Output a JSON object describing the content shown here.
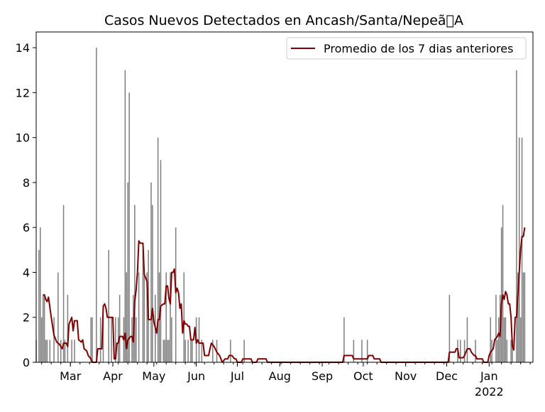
{
  "chart_data": {
    "type": "bar",
    "title": "Casos Nuevos Detectados en Ancash/Santa/Nepeã\u0000A",
    "xlabel": "",
    "ylabel": "",
    "ylim": [
      0,
      14.7
    ],
    "yticks": [
      0,
      2,
      4,
      6,
      8,
      10,
      12,
      14
    ],
    "xlim": [
      "2021-02-04",
      "2022-02-02"
    ],
    "xticks": [
      {
        "date": "2021-03-01",
        "label": "Mar"
      },
      {
        "date": "2021-04-01",
        "label": "Apr"
      },
      {
        "date": "2021-05-01",
        "label": "May"
      },
      {
        "date": "2021-06-01",
        "label": "Jun"
      },
      {
        "date": "2021-07-01",
        "label": "Jul"
      },
      {
        "date": "2021-08-01",
        "label": "Aug"
      },
      {
        "date": "2021-09-01",
        "label": "Sep"
      },
      {
        "date": "2021-10-01",
        "label": "Oct"
      },
      {
        "date": "2021-11-01",
        "label": "Nov"
      },
      {
        "date": "2021-12-01",
        "label": "Dec"
      },
      {
        "date": "2022-01-01",
        "label": "Jan",
        "sublabel": "2022"
      }
    ],
    "bar_color": "#808080",
    "line_color": "#800000",
    "legend": {
      "position": "upper right",
      "entries": [
        "Promedio de los 7 dias anteriores"
      ]
    },
    "series": [
      {
        "type": "bar",
        "points": [
          [
            "2021-02-04",
            1
          ],
          [
            "2021-02-06",
            5
          ],
          [
            "2021-02-07",
            6
          ],
          [
            "2021-02-08",
            2
          ],
          [
            "2021-02-09",
            3
          ],
          [
            "2021-02-10",
            3
          ],
          [
            "2021-02-11",
            1
          ],
          [
            "2021-02-12",
            1
          ],
          [
            "2021-02-14",
            1
          ],
          [
            "2021-02-17",
            2
          ],
          [
            "2021-02-20",
            4
          ],
          [
            "2021-02-22",
            1
          ],
          [
            "2021-02-24",
            7
          ],
          [
            "2021-02-25",
            1
          ],
          [
            "2021-02-27",
            3
          ],
          [
            "2021-03-02",
            1
          ],
          [
            "2021-03-04",
            1
          ],
          [
            "2021-03-16",
            2
          ],
          [
            "2021-03-17",
            2
          ],
          [
            "2021-03-20",
            14
          ],
          [
            "2021-03-23",
            2
          ],
          [
            "2021-03-25",
            2
          ],
          [
            "2021-03-29",
            5
          ],
          [
            "2021-03-31",
            2
          ],
          [
            "2021-04-03",
            2
          ],
          [
            "2021-04-05",
            2
          ],
          [
            "2021-04-06",
            3
          ],
          [
            "2021-04-09",
            2
          ],
          [
            "2021-04-10",
            13
          ],
          [
            "2021-04-11",
            4
          ],
          [
            "2021-04-12",
            8
          ],
          [
            "2021-04-13",
            12
          ],
          [
            "2021-04-15",
            2
          ],
          [
            "2021-04-16",
            3
          ],
          [
            "2021-04-17",
            7
          ],
          [
            "2021-04-18",
            2
          ],
          [
            "2021-04-20",
            4
          ],
          [
            "2021-04-23",
            5
          ],
          [
            "2021-04-24",
            4
          ],
          [
            "2021-04-26",
            4
          ],
          [
            "2021-04-27",
            5
          ],
          [
            "2021-04-29",
            8
          ],
          [
            "2021-04-30",
            7
          ],
          [
            "2021-05-02",
            3
          ],
          [
            "2021-05-04",
            10
          ],
          [
            "2021-05-05",
            4
          ],
          [
            "2021-05-06",
            9
          ],
          [
            "2021-05-08",
            1
          ],
          [
            "2021-05-09",
            1
          ],
          [
            "2021-05-10",
            4
          ],
          [
            "2021-05-11",
            1
          ],
          [
            "2021-05-12",
            1
          ],
          [
            "2021-05-13",
            4
          ],
          [
            "2021-05-14",
            2
          ],
          [
            "2021-05-17",
            6
          ],
          [
            "2021-05-23",
            4
          ],
          [
            "2021-05-24",
            1
          ],
          [
            "2021-05-26",
            1
          ],
          [
            "2021-05-28",
            1
          ],
          [
            "2021-05-29",
            1
          ],
          [
            "2021-06-01",
            2
          ],
          [
            "2021-06-03",
            2
          ],
          [
            "2021-06-05",
            1
          ],
          [
            "2021-06-13",
            1
          ],
          [
            "2021-06-16",
            1
          ],
          [
            "2021-06-26",
            1
          ],
          [
            "2021-07-06",
            1
          ],
          [
            "2021-09-17",
            2
          ],
          [
            "2021-09-24",
            1
          ],
          [
            "2021-09-30",
            1
          ],
          [
            "2021-10-04",
            1
          ],
          [
            "2021-12-03",
            3
          ],
          [
            "2021-12-09",
            1
          ],
          [
            "2021-12-11",
            1
          ],
          [
            "2021-12-14",
            1
          ],
          [
            "2021-12-16",
            2
          ],
          [
            "2021-12-22",
            1
          ],
          [
            "2022-01-02",
            2
          ],
          [
            "2022-01-03",
            1
          ],
          [
            "2022-01-06",
            3
          ],
          [
            "2022-01-07",
            1
          ],
          [
            "2022-01-08",
            2
          ],
          [
            "2022-01-09",
            3
          ],
          [
            "2022-01-10",
            6
          ],
          [
            "2022-01-11",
            7
          ],
          [
            "2022-01-12",
            2
          ],
          [
            "2022-01-13",
            2
          ],
          [
            "2022-01-14",
            1
          ],
          [
            "2022-01-17",
            1
          ],
          [
            "2022-01-18",
            1
          ],
          [
            "2022-01-21",
            13
          ],
          [
            "2022-01-22",
            4
          ],
          [
            "2022-01-23",
            10
          ],
          [
            "2022-01-24",
            2
          ],
          [
            "2022-01-25",
            10
          ],
          [
            "2022-01-26",
            4
          ],
          [
            "2022-01-27",
            4
          ]
        ]
      },
      {
        "type": "line",
        "name": "Promedio de los 7 dias anteriores",
        "points": [
          [
            "2021-02-09",
            3.0
          ],
          [
            "2021-02-10",
            3.0
          ],
          [
            "2021-02-11",
            2.8
          ],
          [
            "2021-02-12",
            2.7
          ],
          [
            "2021-02-13",
            2.9
          ],
          [
            "2021-02-15",
            2.0
          ],
          [
            "2021-02-17",
            1.2
          ],
          [
            "2021-02-19",
            0.9
          ],
          [
            "2021-02-21",
            0.8
          ],
          [
            "2021-02-23",
            0.6
          ],
          [
            "2021-02-24",
            0.85
          ],
          [
            "2021-02-26",
            0.85
          ],
          [
            "2021-02-27",
            0.7
          ],
          [
            "2021-02-28",
            1.7
          ],
          [
            "2021-03-02",
            2.0
          ],
          [
            "2021-03-03",
            1.4
          ],
          [
            "2021-03-04",
            1.85
          ],
          [
            "2021-03-06",
            1.85
          ],
          [
            "2021-03-07",
            1.0
          ],
          [
            "2021-03-09",
            0.9
          ],
          [
            "2021-03-10",
            1.0
          ],
          [
            "2021-03-11",
            0.6
          ],
          [
            "2021-03-13",
            0.5
          ],
          [
            "2021-03-14",
            0.3
          ],
          [
            "2021-03-16",
            0.15
          ],
          [
            "2021-03-17",
            0.0
          ],
          [
            "2021-03-20",
            0.0
          ],
          [
            "2021-03-21",
            0.6
          ],
          [
            "2021-03-24",
            0.6
          ],
          [
            "2021-03-25",
            2.5
          ],
          [
            "2021-03-26",
            2.6
          ],
          [
            "2021-03-27",
            2.4
          ],
          [
            "2021-03-28",
            2.0
          ],
          [
            "2021-04-01",
            2.0
          ],
          [
            "2021-04-02",
            0.15
          ],
          [
            "2021-04-03",
            0.15
          ],
          [
            "2021-04-04",
            0.85
          ],
          [
            "2021-04-05",
            0.85
          ],
          [
            "2021-04-06",
            1.15
          ],
          [
            "2021-04-08",
            1.15
          ],
          [
            "2021-04-09",
            1.0
          ],
          [
            "2021-04-10",
            1.3
          ],
          [
            "2021-04-11",
            0.6
          ],
          [
            "2021-04-12",
            1.0
          ],
          [
            "2021-04-14",
            1.15
          ],
          [
            "2021-04-15",
            1.15
          ],
          [
            "2021-04-16",
            0.9
          ],
          [
            "2021-04-17",
            2.7
          ],
          [
            "2021-04-18",
            3.2
          ],
          [
            "2021-04-19",
            4.0
          ],
          [
            "2021-04-20",
            5.4
          ],
          [
            "2021-04-21",
            5.3
          ],
          [
            "2021-04-23",
            5.3
          ],
          [
            "2021-04-24",
            3.9
          ],
          [
            "2021-04-26",
            3.6
          ],
          [
            "2021-04-27",
            1.9
          ],
          [
            "2021-04-29",
            1.9
          ],
          [
            "2021-04-30",
            2.4
          ],
          [
            "2021-05-01",
            1.8
          ],
          [
            "2021-05-03",
            1.3
          ],
          [
            "2021-05-04",
            1.9
          ],
          [
            "2021-05-05",
            1.9
          ],
          [
            "2021-05-06",
            2.5
          ],
          [
            "2021-05-08",
            2.6
          ],
          [
            "2021-05-09",
            2.6
          ],
          [
            "2021-05-10",
            3.4
          ],
          [
            "2021-05-11",
            3.4
          ],
          [
            "2021-05-12",
            2.85
          ],
          [
            "2021-05-13",
            2.6
          ],
          [
            "2021-05-14",
            4.0
          ],
          [
            "2021-05-15",
            4.0
          ],
          [
            "2021-05-16",
            4.15
          ],
          [
            "2021-05-17",
            3.1
          ],
          [
            "2021-05-18",
            3.3
          ],
          [
            "2021-05-19",
            3.1
          ],
          [
            "2021-05-20",
            2.4
          ],
          [
            "2021-05-21",
            2.6
          ],
          [
            "2021-05-22",
            1.3
          ],
          [
            "2021-05-23",
            1.85
          ],
          [
            "2021-05-24",
            1.7
          ],
          [
            "2021-05-25",
            1.7
          ],
          [
            "2021-05-26",
            1.6
          ],
          [
            "2021-05-27",
            1.6
          ],
          [
            "2021-05-28",
            1.0
          ],
          [
            "2021-05-30",
            1.0
          ],
          [
            "2021-05-31",
            1.55
          ],
          [
            "2021-06-01",
            0.85
          ],
          [
            "2021-06-02",
            1.0
          ],
          [
            "2021-06-03",
            0.85
          ],
          [
            "2021-06-06",
            0.85
          ],
          [
            "2021-06-07",
            0.3
          ],
          [
            "2021-06-10",
            0.3
          ],
          [
            "2021-06-11",
            0.6
          ],
          [
            "2021-06-12",
            0.85
          ],
          [
            "2021-06-14",
            0.7
          ],
          [
            "2021-06-16",
            0.45
          ],
          [
            "2021-06-18",
            0.3
          ],
          [
            "2021-06-20",
            0.0
          ],
          [
            "2021-06-22",
            0.15
          ],
          [
            "2021-06-24",
            0.15
          ],
          [
            "2021-06-25",
            0.3
          ],
          [
            "2021-06-27",
            0.3
          ],
          [
            "2021-06-29",
            0.15
          ],
          [
            "2021-06-30",
            0.15
          ],
          [
            "2021-07-01",
            0.0
          ],
          [
            "2021-07-04",
            0.0
          ],
          [
            "2021-07-05",
            0.15
          ],
          [
            "2021-07-11",
            0.15
          ],
          [
            "2021-07-12",
            0.0
          ],
          [
            "2021-07-15",
            0.0
          ],
          [
            "2021-07-16",
            0.15
          ],
          [
            "2021-07-22",
            0.15
          ],
          [
            "2021-07-23",
            0.0
          ],
          [
            "2021-09-16",
            0.0
          ],
          [
            "2021-09-17",
            0.3
          ],
          [
            "2021-09-23",
            0.3
          ],
          [
            "2021-09-24",
            0.15
          ],
          [
            "2021-10-04",
            0.15
          ],
          [
            "2021-10-05",
            0.3
          ],
          [
            "2021-10-08",
            0.3
          ],
          [
            "2021-10-09",
            0.15
          ],
          [
            "2021-10-13",
            0.15
          ],
          [
            "2021-10-14",
            0.0
          ],
          [
            "2021-12-02",
            0.0
          ],
          [
            "2021-12-03",
            0.45
          ],
          [
            "2021-12-07",
            0.45
          ],
          [
            "2021-12-08",
            0.6
          ],
          [
            "2021-12-09",
            0.6
          ],
          [
            "2021-12-10",
            0.2
          ],
          [
            "2021-12-13",
            0.2
          ],
          [
            "2021-12-14",
            0.3
          ],
          [
            "2021-12-16",
            0.6
          ],
          [
            "2021-12-18",
            0.6
          ],
          [
            "2021-12-19",
            0.45
          ],
          [
            "2021-12-21",
            0.3
          ],
          [
            "2021-12-22",
            0.3
          ],
          [
            "2021-12-23",
            0.15
          ],
          [
            "2021-12-27",
            0.15
          ],
          [
            "2021-12-28",
            0.0
          ],
          [
            "2021-12-31",
            0.0
          ],
          [
            "2022-01-01",
            0.3
          ],
          [
            "2022-01-02",
            0.45
          ],
          [
            "2022-01-04",
            0.6
          ],
          [
            "2022-01-05",
            1.0
          ],
          [
            "2022-01-07",
            1.15
          ],
          [
            "2022-01-08",
            1.3
          ],
          [
            "2022-01-09",
            1.15
          ],
          [
            "2022-01-10",
            2.6
          ],
          [
            "2022-01-11",
            3.0
          ],
          [
            "2022-01-12",
            2.8
          ],
          [
            "2022-01-13",
            3.15
          ],
          [
            "2022-01-14",
            3.0
          ],
          [
            "2022-01-15",
            2.6
          ],
          [
            "2022-01-16",
            2.6
          ],
          [
            "2022-01-17",
            2.0
          ],
          [
            "2022-01-18",
            0.7
          ],
          [
            "2022-01-19",
            0.55
          ],
          [
            "2022-01-20",
            2.0
          ],
          [
            "2022-01-21",
            2.0
          ],
          [
            "2022-01-22",
            3.0
          ],
          [
            "2022-01-23",
            4.0
          ],
          [
            "2022-01-24",
            5.0
          ],
          [
            "2022-01-25",
            5.6
          ],
          [
            "2022-01-26",
            5.6
          ],
          [
            "2022-01-27",
            6.0
          ]
        ]
      }
    ]
  }
}
